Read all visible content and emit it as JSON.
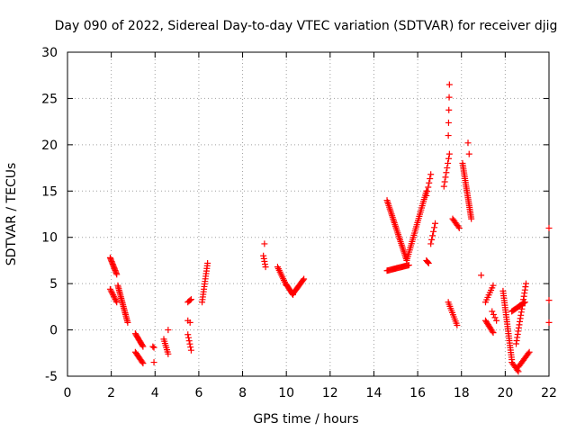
{
  "chart_data": {
    "type": "scatter",
    "title": "Day 090 of 2022, Sidereal Day-to-day VTEC variation (SDTVAR) for receiver djig",
    "xlabel": "GPS time / hours",
    "ylabel": "SDTVAR / TECUs",
    "xlim": [
      0,
      22
    ],
    "ylim": [
      -5,
      30
    ],
    "x_ticks": [
      "0",
      "2",
      "4",
      "6",
      "8",
      "10",
      "12",
      "14",
      "16",
      "18",
      "20",
      "22"
    ],
    "y_ticks": [
      "-5",
      "0",
      "5",
      "10",
      "15",
      "20",
      "25",
      "30"
    ],
    "grid": true,
    "marker": "+",
    "colors": {
      "points": "#ff0000",
      "grid": "#a0a0a0",
      "frame": "#000000"
    },
    "series": [
      {
        "name": "SDTVAR",
        "segments": [
          {
            "x0": 1.95,
            "x1": 2.25,
            "y0": 7.8,
            "y1": 6.0,
            "n": 14
          },
          {
            "x0": 1.95,
            "x1": 2.25,
            "y0": 4.4,
            "y1": 3.0,
            "n": 10
          },
          {
            "x0": 2.3,
            "x1": 2.75,
            "y0": 4.8,
            "y1": 0.8,
            "n": 24
          },
          {
            "x0": 3.1,
            "x1": 3.45,
            "y0": -0.4,
            "y1": -1.8,
            "n": 12
          },
          {
            "x0": 3.1,
            "x1": 3.45,
            "y0": -2.4,
            "y1": -3.6,
            "n": 10
          },
          {
            "x0": 3.9,
            "x1": 3.95,
            "y0": -1.8,
            "y1": -1.9,
            "n": 2
          },
          {
            "x0": 3.95,
            "x1": 3.95,
            "y0": -3.5,
            "y1": -3.5,
            "n": 1
          },
          {
            "x0": 4.4,
            "x1": 4.6,
            "y0": -1.0,
            "y1": -2.6,
            "n": 8
          },
          {
            "x0": 4.6,
            "x1": 4.6,
            "y0": 0.0,
            "y1": 0.0,
            "n": 1
          },
          {
            "x0": 5.5,
            "x1": 5.65,
            "y0": 3.0,
            "y1": 3.3,
            "n": 4
          },
          {
            "x0": 5.5,
            "x1": 5.6,
            "y0": 1.0,
            "y1": 0.8,
            "n": 2
          },
          {
            "x0": 5.5,
            "x1": 5.65,
            "y0": -0.5,
            "y1": -2.2,
            "n": 6
          },
          {
            "x0": 6.15,
            "x1": 6.4,
            "y0": 3.0,
            "y1": 7.2,
            "n": 16
          },
          {
            "x0": 9.0,
            "x1": 9.0,
            "y0": 9.3,
            "y1": 9.3,
            "n": 1
          },
          {
            "x0": 8.95,
            "x1": 9.05,
            "y0": 8.0,
            "y1": 6.8,
            "n": 5
          },
          {
            "x0": 9.6,
            "x1": 10.0,
            "y0": 6.8,
            "y1": 4.8,
            "n": 12
          },
          {
            "x0": 10.0,
            "x1": 10.3,
            "y0": 4.9,
            "y1": 3.8,
            "n": 10
          },
          {
            "x0": 10.3,
            "x1": 10.8,
            "y0": 3.9,
            "y1": 5.5,
            "n": 14
          },
          {
            "x0": 14.6,
            "x1": 15.5,
            "y0": 14.0,
            "y1": 7.5,
            "n": 36
          },
          {
            "x0": 14.6,
            "x1": 15.6,
            "y0": 6.4,
            "y1": 7.0,
            "n": 24
          },
          {
            "x0": 15.5,
            "x1": 16.4,
            "y0": 7.5,
            "y1": 15.0,
            "n": 34
          },
          {
            "x0": 16.4,
            "x1": 16.6,
            "y0": 14.5,
            "y1": 16.8,
            "n": 6
          },
          {
            "x0": 16.4,
            "x1": 16.5,
            "y0": 7.5,
            "y1": 7.2,
            "n": 4
          },
          {
            "x0": 16.6,
            "x1": 16.8,
            "y0": 9.3,
            "y1": 11.5,
            "n": 6
          },
          {
            "x0": 17.2,
            "x1": 17.45,
            "y0": 15.5,
            "y1": 19.0,
            "n": 8
          },
          {
            "x0": 17.4,
            "x1": 17.45,
            "y0": 21.0,
            "y1": 26.5,
            "n": 5
          },
          {
            "x0": 17.4,
            "x1": 17.8,
            "y0": 3.0,
            "y1": 0.5,
            "n": 12
          },
          {
            "x0": 17.6,
            "x1": 17.9,
            "y0": 12.0,
            "y1": 11.0,
            "n": 8
          },
          {
            "x0": 18.05,
            "x1": 18.45,
            "y0": 18.0,
            "y1": 12.0,
            "n": 30
          },
          {
            "x0": 18.3,
            "x1": 18.35,
            "y0": 20.2,
            "y1": 19.0,
            "n": 2
          },
          {
            "x0": 18.9,
            "x1": 18.9,
            "y0": 5.9,
            "y1": 5.9,
            "n": 1
          },
          {
            "x0": 19.1,
            "x1": 19.45,
            "y0": 3.0,
            "y1": 4.8,
            "n": 8
          },
          {
            "x0": 19.1,
            "x1": 19.45,
            "y0": 1.0,
            "y1": -0.3,
            "n": 10
          },
          {
            "x0": 19.4,
            "x1": 19.6,
            "y0": 2.0,
            "y1": 1.0,
            "n": 4
          },
          {
            "x0": 19.9,
            "x1": 20.3,
            "y0": 4.2,
            "y1": -3.2,
            "n": 30
          },
          {
            "x0": 20.3,
            "x1": 20.6,
            "y0": -3.5,
            "y1": -4.5,
            "n": 8
          },
          {
            "x0": 20.3,
            "x1": 20.9,
            "y0": 2.0,
            "y1": 3.0,
            "n": 14
          },
          {
            "x0": 20.5,
            "x1": 20.95,
            "y0": -1.5,
            "y1": 5.0,
            "n": 20
          },
          {
            "x0": 20.6,
            "x1": 21.1,
            "y0": -4.0,
            "y1": -2.4,
            "n": 12
          },
          {
            "x0": 22.0,
            "x1": 22.0,
            "y0": 11.0,
            "y1": 11.0,
            "n": 1
          },
          {
            "x0": 22.0,
            "x1": 22.0,
            "y0": 3.2,
            "y1": 3.2,
            "n": 1
          },
          {
            "x0": 22.0,
            "x1": 22.0,
            "y0": 0.8,
            "y1": 0.8,
            "n": 1
          }
        ]
      }
    ]
  }
}
